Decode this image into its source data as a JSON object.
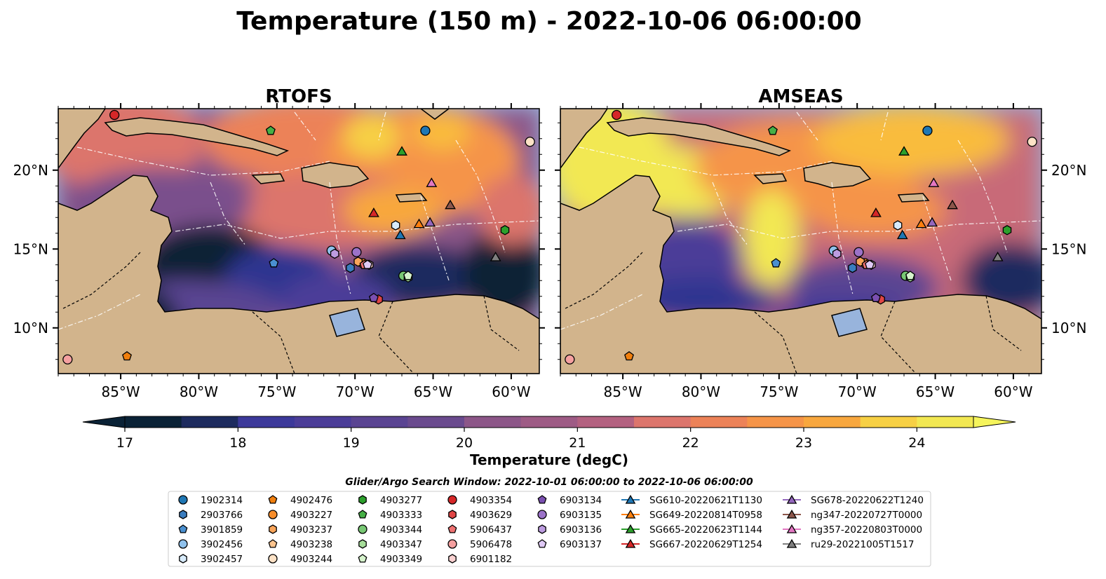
{
  "figure": {
    "title": "Temperature (150 m) - 2022-10-06 06:00:00",
    "colorbar_label": "Temperature (degC)",
    "search_window": "Glider/Argo Search Window: 2022-10-01 06:00:00 to 2022-10-06 06:00:00"
  },
  "chart_data": {
    "type": "heatmap",
    "variable": "Temperature",
    "depth": "150 m",
    "time": "2022-10-06 06:00:00",
    "panels": [
      {
        "title": "RTOFS"
      },
      {
        "title": "AMSEAS"
      }
    ],
    "lon_range": [
      -89,
      -58.2
    ],
    "lat_range": [
      7.1,
      23.9
    ],
    "lon_ticks": [
      {
        "value": -85,
        "label": "85°W"
      },
      {
        "value": -80,
        "label": "80°W"
      },
      {
        "value": -75,
        "label": "75°W"
      },
      {
        "value": -70,
        "label": "70°W"
      },
      {
        "value": -65,
        "label": "65°W"
      },
      {
        "value": -60,
        "label": "60°W"
      }
    ],
    "lat_ticks": [
      {
        "value": 10,
        "label": "10°N"
      },
      {
        "value": 15,
        "label": "15°N"
      },
      {
        "value": 20,
        "label": "20°N"
      }
    ],
    "colorbar": {
      "range": [
        17,
        24.5
      ],
      "step": 0.5,
      "extend": "both",
      "ticks": [
        17,
        18,
        19,
        20,
        21,
        22,
        23,
        24
      ],
      "colors": [
        "#0a2236",
        "#1d2b5e",
        "#2e3590",
        "#3c399a",
        "#4b3d98",
        "#5a4492",
        "#6a4a8e",
        "#7a508c",
        "#8c5688",
        "#9e5b85",
        "#b36180",
        "#c86a78",
        "#dc756c",
        "#ec8258",
        "#f59448",
        "#f8a73e",
        "#f9bc3c",
        "#f7d044",
        "#f2e852"
      ],
      "under_color": "#0a2236",
      "over_color": "#f5f45c"
    },
    "platforms": [
      {
        "id": "1902314",
        "type": "argo",
        "marker": "circle",
        "color": "#1f77b4",
        "lon": -65.5,
        "lat": 22.5
      },
      {
        "id": "2903766",
        "type": "argo",
        "marker": "hexagon",
        "color": "#3a7dbf",
        "lon": -70.3,
        "lat": 13.8
      },
      {
        "id": "3901859",
        "type": "argo",
        "marker": "pentagon",
        "color": "#4a90d0",
        "lon": -75.2,
        "lat": 14.1
      },
      {
        "id": "3902456",
        "type": "argo",
        "marker": "circle",
        "color": "#8fc1ec",
        "lon": -71.5,
        "lat": 14.9
      },
      {
        "id": "3902457",
        "type": "argo",
        "marker": "hexagon",
        "color": "#d7ebfb",
        "lon": -67.4,
        "lat": 16.5
      },
      {
        "id": "4902476",
        "type": "argo",
        "marker": "pentagon",
        "color": "#f07f0e",
        "lon": -84.6,
        "lat": 8.2
      },
      {
        "id": "4903227",
        "type": "argo",
        "marker": "circle",
        "color": "#f78d2b",
        "lon": -69.5,
        "lat": 14.1
      },
      {
        "id": "4903237",
        "type": "argo",
        "marker": "hexagon",
        "color": "#f9a55a",
        "lon": -69.8,
        "lat": 14.2
      },
      {
        "id": "4903238",
        "type": "argo",
        "marker": "pentagon",
        "color": "#fcc48e",
        "lon": -69.4,
        "lat": 14.0
      },
      {
        "id": "4903244",
        "type": "argo",
        "marker": "circle",
        "color": "#fde2c6",
        "lon": -58.8,
        "lat": 21.8
      },
      {
        "id": "4903277",
        "type": "argo",
        "marker": "hexagon",
        "color": "#2ca02c",
        "lon": -60.4,
        "lat": 16.2
      },
      {
        "id": "4903333",
        "type": "argo",
        "marker": "pentagon",
        "color": "#46b046",
        "lon": -75.4,
        "lat": 22.5
      },
      {
        "id": "4903344",
        "type": "argo",
        "marker": "circle",
        "color": "#78c874",
        "lon": -66.9,
        "lat": 13.3
      },
      {
        "id": "4903347",
        "type": "argo",
        "marker": "hexagon",
        "color": "#a6dd9a",
        "lon": -66.6,
        "lat": 13.2
      },
      {
        "id": "4903349",
        "type": "argo",
        "marker": "pentagon",
        "color": "#d6f3cc",
        "lon": -66.6,
        "lat": 13.3
      },
      {
        "id": "4903354",
        "type": "argo",
        "marker": "circle",
        "color": "#d62728",
        "lon": -85.4,
        "lat": 23.5
      },
      {
        "id": "4903629",
        "type": "argo",
        "marker": "hexagon",
        "color": "#e04545",
        "lon": -68.5,
        "lat": 11.8
      },
      {
        "id": "5906437",
        "type": "argo",
        "marker": "pentagon",
        "color": "#ef7272",
        "lon": -69.4,
        "lat": 14.0
      },
      {
        "id": "5906478",
        "type": "argo",
        "marker": "circle",
        "color": "#f5a0a0",
        "lon": -88.4,
        "lat": 8.0
      },
      {
        "id": "6901182",
        "type": "argo",
        "marker": "hexagon",
        "color": "#fbd2d2",
        "lon": -69.1,
        "lat": 14.0
      },
      {
        "id": "6903134",
        "type": "argo",
        "marker": "pentagon",
        "color": "#7a4fb0",
        "lon": -68.8,
        "lat": 11.9
      },
      {
        "id": "6903135",
        "type": "argo",
        "marker": "circle",
        "color": "#9b72c8",
        "lon": -69.9,
        "lat": 14.8
      },
      {
        "id": "6903136",
        "type": "argo",
        "marker": "hexagon",
        "color": "#bd9ce0",
        "lon": -71.3,
        "lat": 14.7
      },
      {
        "id": "6903137",
        "type": "argo",
        "marker": "pentagon",
        "color": "#dfc9f5",
        "lon": -69.2,
        "lat": 14.0
      },
      {
        "id": "SG610-20220621T1130",
        "type": "glider",
        "marker": "triangle",
        "color": "#1f77b4",
        "lon": -67.1,
        "lat": 15.9
      },
      {
        "id": "SG649-20220814T0958",
        "type": "glider",
        "marker": "triangle",
        "color": "#ff7f0e",
        "lon": -65.9,
        "lat": 16.6
      },
      {
        "id": "SG665-20220623T1144",
        "type": "glider",
        "marker": "triangle",
        "color": "#2ca02c",
        "lon": -67.0,
        "lat": 21.2
      },
      {
        "id": "SG667-20220629T1254",
        "type": "glider",
        "marker": "triangle",
        "color": "#d62728",
        "lon": -68.8,
        "lat": 17.3
      },
      {
        "id": "SG678-20220622T1240",
        "type": "glider",
        "marker": "triangle",
        "color": "#9467bd",
        "lon": -65.2,
        "lat": 16.7
      },
      {
        "id": "ng347-20220727T0000",
        "type": "glider",
        "marker": "triangle",
        "color": "#8c564b",
        "lon": -63.9,
        "lat": 17.8
      },
      {
        "id": "ng357-20220803T0000",
        "type": "glider",
        "marker": "triangle",
        "color": "#e377c2",
        "lon": -65.1,
        "lat": 19.2
      },
      {
        "id": "ru29-20221005T1517",
        "type": "glider",
        "marker": "triangle",
        "color": "#7f7f7f",
        "lon": -61.0,
        "lat": 14.5
      }
    ]
  }
}
